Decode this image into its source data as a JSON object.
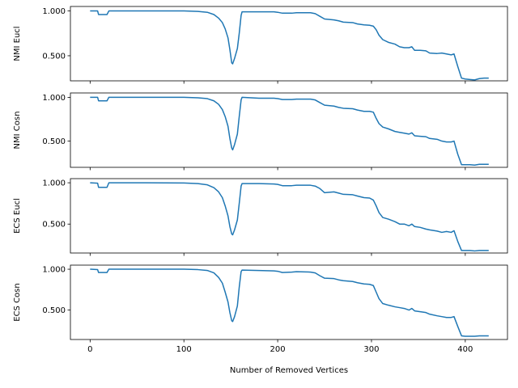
{
  "chart_data": [
    {
      "type": "line",
      "ylabel": "NMI Eucl",
      "xlabel": "",
      "ylim": [
        0.22,
        1.05
      ],
      "xlim": [
        -21,
        445
      ],
      "yticks": [
        0.5,
        1.0
      ],
      "ytick_labels": [
        "0.500",
        "1.000"
      ],
      "xticks": [
        0,
        100,
        200,
        300,
        400
      ],
      "xtick_labels": [],
      "grid": false,
      "series": [
        {
          "color": "#1f77b4",
          "points": [
            [
              0,
              1.0
            ],
            [
              8,
              1.0
            ],
            [
              9,
              0.96
            ],
            [
              18,
              0.96
            ],
            [
              20,
              1.0
            ],
            [
              60,
              1.0
            ],
            [
              100,
              1.0
            ],
            [
              115,
              0.995
            ],
            [
              125,
              0.985
            ],
            [
              132,
              0.96
            ],
            [
              137,
              0.92
            ],
            [
              141,
              0.87
            ],
            [
              144,
              0.8
            ],
            [
              147,
              0.7
            ],
            [
              149,
              0.57
            ],
            [
              151,
              0.42
            ],
            [
              152,
              0.41
            ],
            [
              154,
              0.47
            ],
            [
              157,
              0.58
            ],
            [
              159,
              0.75
            ],
            [
              161,
              0.95
            ],
            [
              162,
              0.99
            ],
            [
              180,
              0.99
            ],
            [
              196,
              0.99
            ],
            [
              200,
              0.985
            ],
            [
              205,
              0.975
            ],
            [
              215,
              0.975
            ],
            [
              220,
              0.98
            ],
            [
              235,
              0.98
            ],
            [
              240,
              0.97
            ],
            [
              245,
              0.94
            ],
            [
              250,
              0.91
            ],
            [
              260,
              0.9
            ],
            [
              265,
              0.89
            ],
            [
              270,
              0.875
            ],
            [
              280,
              0.87
            ],
            [
              285,
              0.855
            ],
            [
              292,
              0.845
            ],
            [
              298,
              0.84
            ],
            [
              302,
              0.83
            ],
            [
              305,
              0.79
            ],
            [
              308,
              0.73
            ],
            [
              312,
              0.68
            ],
            [
              318,
              0.65
            ],
            [
              325,
              0.63
            ],
            [
              330,
              0.6
            ],
            [
              335,
              0.59
            ],
            [
              340,
              0.59
            ],
            [
              343,
              0.6
            ],
            [
              346,
              0.56
            ],
            [
              352,
              0.56
            ],
            [
              358,
              0.555
            ],
            [
              362,
              0.53
            ],
            [
              370,
              0.525
            ],
            [
              375,
              0.53
            ],
            [
              380,
              0.52
            ],
            [
              385,
              0.51
            ],
            [
              388,
              0.52
            ],
            [
              392,
              0.38
            ],
            [
              396,
              0.25
            ],
            [
              400,
              0.24
            ],
            [
              405,
              0.235
            ],
            [
              410,
              0.23
            ],
            [
              415,
              0.245
            ],
            [
              420,
              0.25
            ],
            [
              425,
              0.25
            ]
          ]
        }
      ]
    },
    {
      "type": "line",
      "ylabel": "NMI Cosn",
      "xlabel": "",
      "ylim": [
        0.2,
        1.05
      ],
      "xlim": [
        -21,
        445
      ],
      "yticks": [
        0.5,
        1.0
      ],
      "ytick_labels": [
        "0.500",
        "1.000"
      ],
      "xticks": [
        0,
        100,
        200,
        300,
        400
      ],
      "xtick_labels": [],
      "grid": false,
      "series": [
        {
          "color": "#1f77b4",
          "points": [
            [
              0,
              1.0
            ],
            [
              8,
              1.0
            ],
            [
              9,
              0.96
            ],
            [
              18,
              0.96
            ],
            [
              20,
              1.0
            ],
            [
              60,
              1.0
            ],
            [
              100,
              1.0
            ],
            [
              115,
              0.995
            ],
            [
              125,
              0.985
            ],
            [
              132,
              0.96
            ],
            [
              137,
              0.92
            ],
            [
              141,
              0.86
            ],
            [
              144,
              0.78
            ],
            [
              147,
              0.67
            ],
            [
              149,
              0.53
            ],
            [
              151,
              0.42
            ],
            [
              152,
              0.4
            ],
            [
              154,
              0.46
            ],
            [
              157,
              0.58
            ],
            [
              159,
              0.78
            ],
            [
              161,
              0.97
            ],
            [
              162,
              1.0
            ],
            [
              180,
              0.99
            ],
            [
              196,
              0.99
            ],
            [
              200,
              0.985
            ],
            [
              205,
              0.975
            ],
            [
              215,
              0.975
            ],
            [
              220,
              0.98
            ],
            [
              235,
              0.98
            ],
            [
              240,
              0.97
            ],
            [
              245,
              0.94
            ],
            [
              250,
              0.91
            ],
            [
              260,
              0.9
            ],
            [
              265,
              0.885
            ],
            [
              270,
              0.875
            ],
            [
              280,
              0.87
            ],
            [
              285,
              0.855
            ],
            [
              292,
              0.84
            ],
            [
              298,
              0.84
            ],
            [
              302,
              0.83
            ],
            [
              305,
              0.76
            ],
            [
              308,
              0.7
            ],
            [
              312,
              0.66
            ],
            [
              318,
              0.64
            ],
            [
              325,
              0.61
            ],
            [
              330,
              0.6
            ],
            [
              335,
              0.59
            ],
            [
              340,
              0.58
            ],
            [
              343,
              0.595
            ],
            [
              346,
              0.56
            ],
            [
              352,
              0.555
            ],
            [
              358,
              0.55
            ],
            [
              362,
              0.53
            ],
            [
              370,
              0.52
            ],
            [
              375,
              0.5
            ],
            [
              380,
              0.49
            ],
            [
              385,
              0.49
            ],
            [
              388,
              0.5
            ],
            [
              392,
              0.35
            ],
            [
              396,
              0.23
            ],
            [
              400,
              0.23
            ],
            [
              405,
              0.23
            ],
            [
              410,
              0.225
            ],
            [
              415,
              0.235
            ],
            [
              420,
              0.235
            ],
            [
              425,
              0.235
            ]
          ]
        }
      ]
    },
    {
      "type": "line",
      "ylabel": "ECS Eucl",
      "xlabel": "",
      "ylim": [
        0.15,
        1.05
      ],
      "xlim": [
        -21,
        445
      ],
      "yticks": [
        0.5,
        1.0
      ],
      "ytick_labels": [
        "0.500",
        "1.000"
      ],
      "xticks": [
        0,
        100,
        200,
        300,
        400
      ],
      "xtick_labels": [],
      "grid": false,
      "series": [
        {
          "color": "#1f77b4",
          "points": [
            [
              0,
              1.0
            ],
            [
              8,
              0.995
            ],
            [
              9,
              0.945
            ],
            [
              18,
              0.945
            ],
            [
              20,
              1.0
            ],
            [
              60,
              1.0
            ],
            [
              100,
              0.998
            ],
            [
              115,
              0.99
            ],
            [
              125,
              0.975
            ],
            [
              132,
              0.94
            ],
            [
              137,
              0.89
            ],
            [
              141,
              0.82
            ],
            [
              144,
              0.72
            ],
            [
              147,
              0.6
            ],
            [
              149,
              0.47
            ],
            [
              151,
              0.38
            ],
            [
              152,
              0.37
            ],
            [
              154,
              0.43
            ],
            [
              157,
              0.55
            ],
            [
              159,
              0.75
            ],
            [
              161,
              0.96
            ],
            [
              162,
              0.99
            ],
            [
              180,
              0.99
            ],
            [
              196,
              0.985
            ],
            [
              200,
              0.98
            ],
            [
              205,
              0.965
            ],
            [
              215,
              0.965
            ],
            [
              220,
              0.97
            ],
            [
              235,
              0.97
            ],
            [
              240,
              0.96
            ],
            [
              245,
              0.93
            ],
            [
              250,
              0.88
            ],
            [
              260,
              0.89
            ],
            [
              265,
              0.875
            ],
            [
              270,
              0.86
            ],
            [
              280,
              0.855
            ],
            [
              285,
              0.84
            ],
            [
              292,
              0.82
            ],
            [
              298,
              0.815
            ],
            [
              302,
              0.79
            ],
            [
              305,
              0.72
            ],
            [
              308,
              0.64
            ],
            [
              312,
              0.58
            ],
            [
              318,
              0.56
            ],
            [
              325,
              0.53
            ],
            [
              330,
              0.5
            ],
            [
              335,
              0.5
            ],
            [
              340,
              0.48
            ],
            [
              343,
              0.5
            ],
            [
              346,
              0.47
            ],
            [
              352,
              0.46
            ],
            [
              358,
              0.44
            ],
            [
              362,
              0.43
            ],
            [
              370,
              0.415
            ],
            [
              375,
              0.4
            ],
            [
              380,
              0.41
            ],
            [
              385,
              0.4
            ],
            [
              388,
              0.42
            ],
            [
              392,
              0.29
            ],
            [
              396,
              0.18
            ],
            [
              400,
              0.18
            ],
            [
              405,
              0.18
            ],
            [
              410,
              0.175
            ],
            [
              415,
              0.18
            ],
            [
              420,
              0.18
            ],
            [
              425,
              0.18
            ]
          ]
        }
      ]
    },
    {
      "type": "line",
      "ylabel": "ECS Cosn",
      "xlabel": "Number of Removed Vertices",
      "ylim": [
        0.14,
        1.05
      ],
      "xlim": [
        -21,
        445
      ],
      "yticks": [
        0.5,
        1.0
      ],
      "ytick_labels": [
        "0.500",
        "1.000"
      ],
      "xticks": [
        0,
        100,
        200,
        300,
        400
      ],
      "xtick_labels": [
        "0",
        "100",
        "200",
        "300",
        "400"
      ],
      "grid": false,
      "series": [
        {
          "color": "#1f77b4",
          "points": [
            [
              0,
              1.0
            ],
            [
              8,
              0.995
            ],
            [
              9,
              0.96
            ],
            [
              18,
              0.96
            ],
            [
              20,
              1.0
            ],
            [
              60,
              1.0
            ],
            [
              100,
              1.0
            ],
            [
              115,
              0.995
            ],
            [
              125,
              0.985
            ],
            [
              132,
              0.955
            ],
            [
              137,
              0.9
            ],
            [
              141,
              0.83
            ],
            [
              144,
              0.72
            ],
            [
              147,
              0.6
            ],
            [
              149,
              0.47
            ],
            [
              151,
              0.37
            ],
            [
              152,
              0.36
            ],
            [
              154,
              0.42
            ],
            [
              157,
              0.55
            ],
            [
              159,
              0.78
            ],
            [
              161,
              0.97
            ],
            [
              162,
              0.99
            ],
            [
              180,
              0.985
            ],
            [
              196,
              0.98
            ],
            [
              200,
              0.975
            ],
            [
              205,
              0.96
            ],
            [
              215,
              0.965
            ],
            [
              220,
              0.97
            ],
            [
              235,
              0.965
            ],
            [
              240,
              0.955
            ],
            [
              245,
              0.92
            ],
            [
              250,
              0.89
            ],
            [
              260,
              0.885
            ],
            [
              265,
              0.87
            ],
            [
              270,
              0.86
            ],
            [
              280,
              0.85
            ],
            [
              285,
              0.835
            ],
            [
              292,
              0.82
            ],
            [
              298,
              0.815
            ],
            [
              302,
              0.8
            ],
            [
              305,
              0.72
            ],
            [
              308,
              0.64
            ],
            [
              312,
              0.58
            ],
            [
              318,
              0.56
            ],
            [
              325,
              0.54
            ],
            [
              330,
              0.53
            ],
            [
              335,
              0.52
            ],
            [
              340,
              0.5
            ],
            [
              343,
              0.52
            ],
            [
              346,
              0.49
            ],
            [
              352,
              0.48
            ],
            [
              358,
              0.47
            ],
            [
              362,
              0.45
            ],
            [
              370,
              0.43
            ],
            [
              375,
              0.42
            ],
            [
              380,
              0.41
            ],
            [
              385,
              0.41
            ],
            [
              388,
              0.42
            ],
            [
              392,
              0.3
            ],
            [
              396,
              0.185
            ],
            [
              400,
              0.18
            ],
            [
              405,
              0.18
            ],
            [
              410,
              0.18
            ],
            [
              415,
              0.185
            ],
            [
              420,
              0.185
            ],
            [
              425,
              0.185
            ]
          ]
        }
      ]
    }
  ]
}
